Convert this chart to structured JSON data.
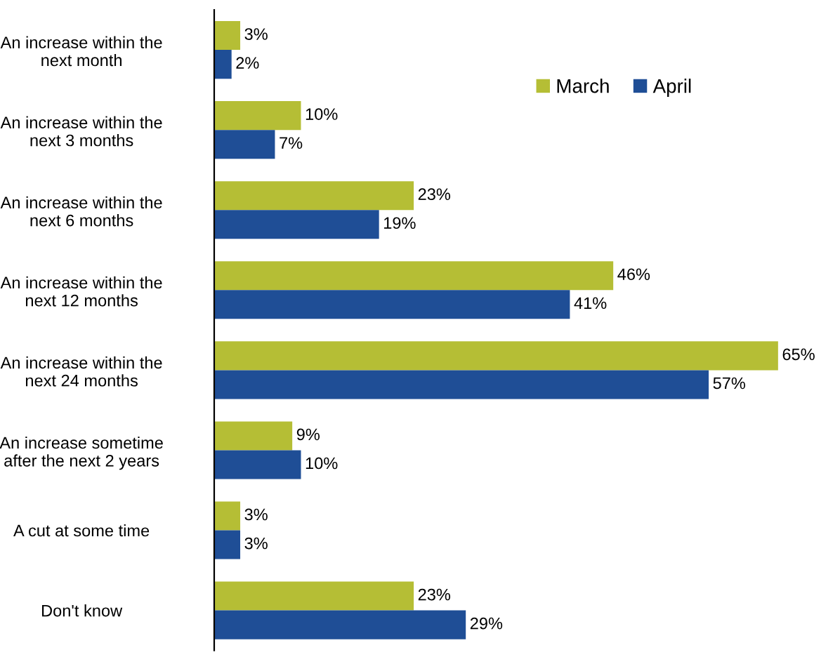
{
  "chart_data": {
    "type": "bar",
    "orientation": "horizontal",
    "categories": [
      "An increase within the\nnext month",
      "An increase within the\nnext 3 months",
      "An increase within the\nnext 6 months",
      "An increase within the\nnext 12 months",
      "An increase within the\nnext 24 months",
      "An increase sometime\nafter the next 2 years",
      "A cut at some time",
      "Don't know"
    ],
    "series": [
      {
        "name": "March",
        "color": "#b5be35",
        "values": [
          3,
          10,
          23,
          46,
          65,
          9,
          3,
          23
        ],
        "value_labels": [
          "3%",
          "10%",
          "23%",
          "46%",
          "65%",
          "9%",
          "3%",
          "23%"
        ]
      },
      {
        "name": "April",
        "color": "#1f4e96",
        "values": [
          2,
          7,
          19,
          41,
          57,
          10,
          3,
          29
        ],
        "value_labels": [
          "2%",
          "7%",
          "19%",
          "41%",
          "57%",
          "10%",
          "3%",
          "29%"
        ]
      }
    ],
    "legend": "top right",
    "grid": false
  }
}
